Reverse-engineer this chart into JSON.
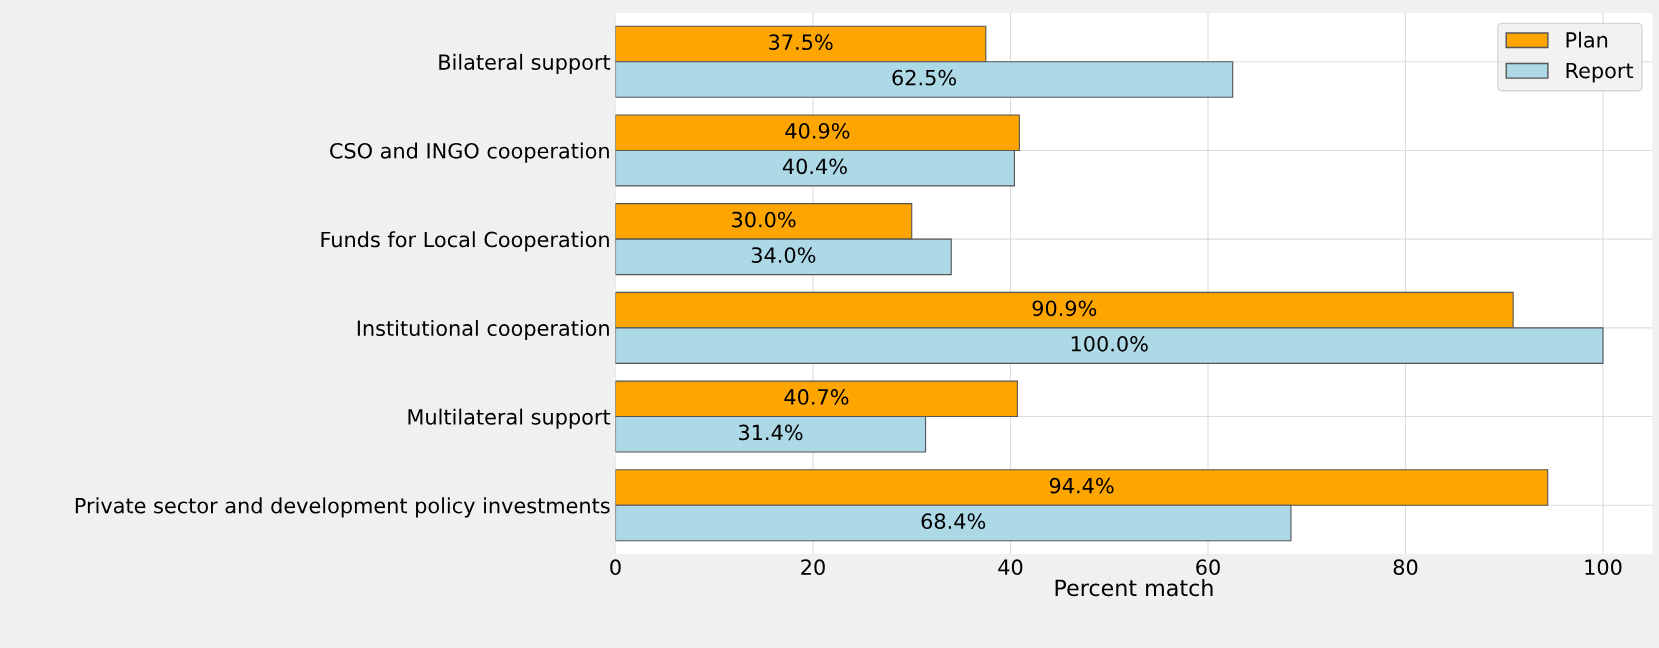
{
  "chart_data": {
    "type": "bar",
    "orientation": "horizontal",
    "xlabel": "Percent match",
    "categories": [
      "Bilateral support",
      "CSO and INGO cooperation",
      "Funds for Local Cooperation",
      "Institutional cooperation",
      "Multilateral support",
      "Private sector and development policy investments"
    ],
    "series": [
      {
        "name": "Plan",
        "color": "#ffa500",
        "values": [
          37.5,
          40.9,
          30.0,
          90.9,
          40.7,
          94.4
        ],
        "value_labels": [
          "37.5%",
          "40.9%",
          "30.0%",
          "90.9%",
          "40.7%",
          "94.4%"
        ]
      },
      {
        "name": "Report",
        "color": "#add8e6",
        "values": [
          62.5,
          40.4,
          34.0,
          100.0,
          31.4,
          68.4
        ],
        "value_labels": [
          "62.5%",
          "40.4%",
          "34.0%",
          "100.0%",
          "31.4%",
          "68.4%"
        ]
      }
    ],
    "xlim": [
      0,
      105
    ],
    "xticks": [
      0,
      20,
      40,
      60,
      80,
      100
    ],
    "grid": true,
    "legend": "top right"
  }
}
